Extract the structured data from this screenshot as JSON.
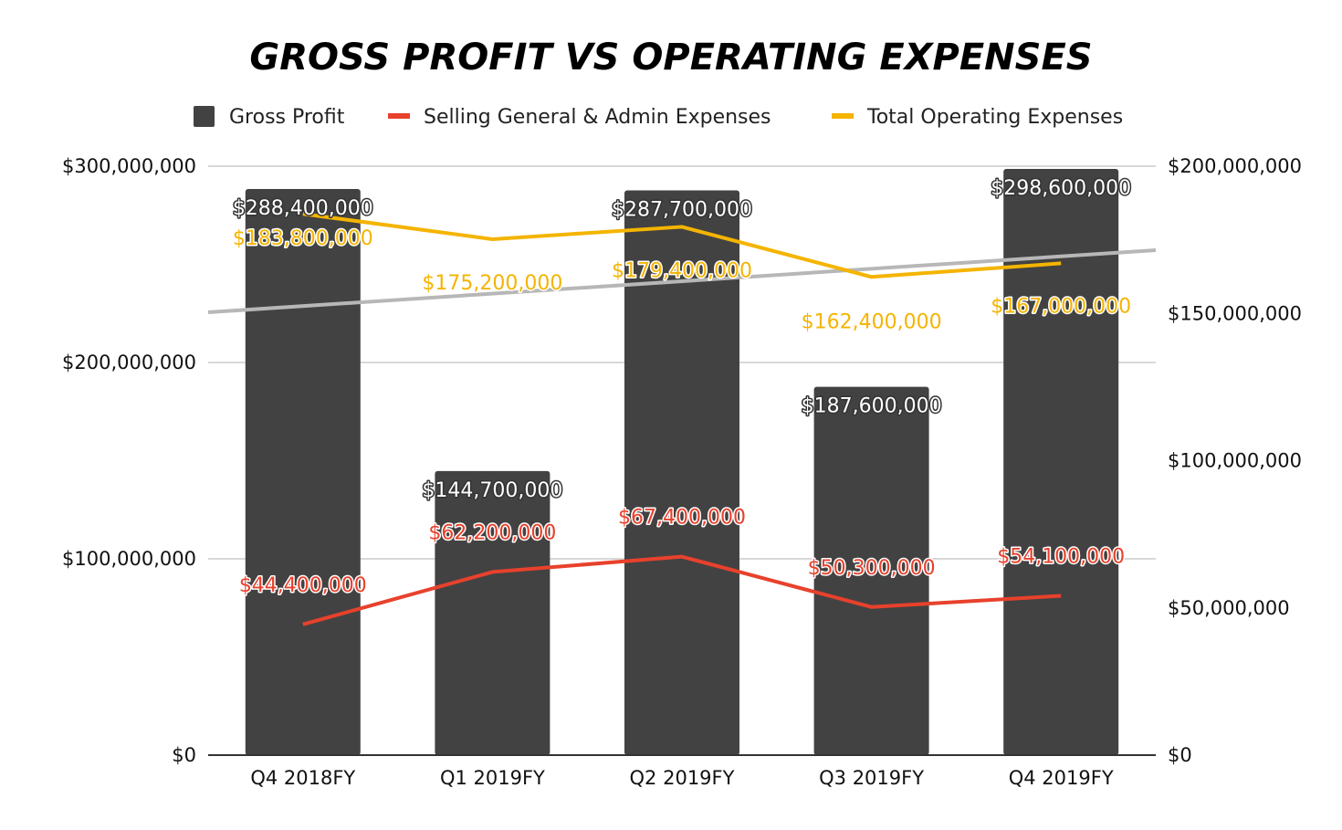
{
  "chart_data": {
    "type": "bar",
    "title": "GROSS PROFIT VS OPERATING EXPENSES",
    "categories": [
      "Q4 2018FY",
      "Q1 2019FY",
      "Q2 2019FY",
      "Q3 2019FY",
      "Q4 2019FY"
    ],
    "series": [
      {
        "name": "Gross Profit",
        "type": "bar",
        "axis": "left",
        "color": "#424242",
        "values": [
          288400000,
          144700000,
          287700000,
          187600000,
          298600000
        ],
        "labels": [
          "$288,400,000",
          "$144,700,000",
          "$287,700,000",
          "$187,600,000",
          "$298,600,000"
        ]
      },
      {
        "name": "Selling General & Admin Expenses",
        "type": "line",
        "axis": "right",
        "color": "#e8412c",
        "values": [
          44400000,
          62200000,
          67400000,
          50300000,
          54100000
        ],
        "labels": [
          "$44,400,000",
          "$62,200,000",
          "$67,400,000",
          "$50,300,000",
          "$54,100,000"
        ]
      },
      {
        "name": "Total Operating Expenses",
        "type": "line",
        "axis": "right",
        "color": "#f4b400",
        "values": [
          183800000,
          175200000,
          179400000,
          162400000,
          167000000
        ],
        "labels": [
          "$183,800,000",
          "$175,200,000",
          "$179,400,000",
          "$162,400,000",
          "$167,000,000"
        ]
      }
    ],
    "trendline": {
      "series": "Gross Profit",
      "axis": "left",
      "color": "#b7b7b7"
    },
    "left_axis": {
      "ylim": [
        0,
        300000000
      ],
      "ticks": [
        "$0",
        "$100,000,000",
        "$200,000,000",
        "$300,000,000"
      ]
    },
    "right_axis": {
      "ylim": [
        0,
        200000000
      ],
      "ticks": [
        "$0",
        "$50,000,000",
        "$100,000,000",
        "$150,000,000",
        "$200,000,000"
      ]
    },
    "grid": true,
    "legend_position": "top"
  }
}
